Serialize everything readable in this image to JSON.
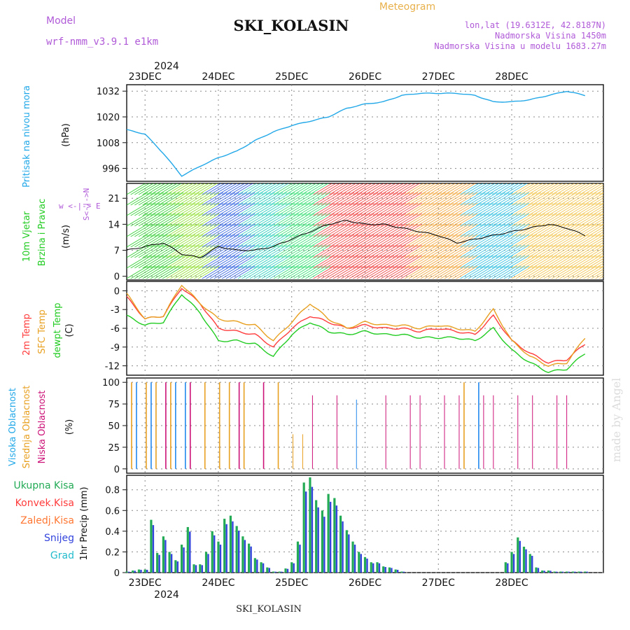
{
  "header": {
    "model_label": "Model",
    "model_name": "wrf-nmm_v3.9.1 e1km",
    "title": "SKI_KOLASIN",
    "subtitle": "Meteogram",
    "lonlat": "lon,lat (19.6312E, 42.8187N)",
    "elevation": "Nadmorska Visina 1450m",
    "model_elevation": "Nadmorska Visina u modelu 1683.27m",
    "watermark": "made by Angel",
    "footer": "SKI_KOLASIN"
  },
  "time_axis": {
    "year": "2024",
    "days": [
      "23DEC",
      "24DEC",
      "25DEC",
      "26DEC",
      "27DEC",
      "28DEC"
    ]
  },
  "colors": {
    "pressure": "#22a8e8",
    "temp2m": "#ff3b3b",
    "sfc": "#e8a020",
    "dew": "#22cc22",
    "high_cloud": "#2288ee",
    "mid_cloud": "#e8a020",
    "low_cloud": "#cc1177",
    "precip_total": "#22aa55",
    "snow": "#3344dd",
    "wind_speed": "#000000"
  },
  "panels": {
    "pressure": {
      "label": "Pritisak na nivou mora",
      "unit": "(hPa)",
      "ticks": [
        "996",
        "1008",
        "1020",
        "1032"
      ]
    },
    "wind": {
      "label1": "10m Vjetar",
      "label2": "Brzina i Pravac",
      "unit": "(m/s)",
      "ticks": [
        "0",
        "7",
        "14",
        "21"
      ],
      "compass": "w <-|-> E",
      "compass2": "S<-|->N"
    },
    "temp": {
      "label1": "2m Temp",
      "label2": "SFC Temp",
      "label3": "dewpt Temp",
      "unit": "(C)",
      "ticks": [
        "0",
        "-3",
        "-6",
        "-9",
        "-12"
      ]
    },
    "cloud": {
      "label1": "Visoka Oblacnost",
      "label2": "Srednja Oblacnost",
      "label3": "Niska Oblacnost",
      "unit": "(%)",
      "ticks": [
        "0",
        "25",
        "50",
        "75",
        "100"
      ]
    },
    "precip": {
      "legend": [
        "Ukupna Kisa",
        "Konvek.Kisa",
        "Zaledj.Kisa",
        "Snijeg",
        "Grad"
      ],
      "legend_colors": [
        "#22aa55",
        "#ff3b3b",
        "#ff7733",
        "#3344dd",
        "#22bbcc"
      ],
      "unit": "1hr Precip (mm)",
      "ticks": [
        "0",
        "0.2",
        "0.4",
        "0.6",
        "0.8"
      ]
    }
  },
  "chart_data": [
    {
      "type": "line",
      "title": "Pritisak na nivou mora",
      "ylabel": "(hPa)",
      "x_hours_from_23DEC_00": [
        -6,
        0,
        6,
        12,
        18,
        24,
        30,
        36,
        42,
        48,
        54,
        60,
        66,
        72,
        78,
        84,
        90,
        96,
        102,
        108,
        114,
        120,
        126,
        132,
        138,
        144
      ],
      "series": [
        {
          "name": "Pritisak",
          "values": [
            1014,
            1012,
            1003,
            992.5,
            997,
            1001,
            1004,
            1009,
            1013,
            1016,
            1018,
            1020,
            1024,
            1026,
            1027,
            1030,
            1031,
            1031,
            1031,
            1030,
            1027,
            1027,
            1028,
            1030,
            1032,
            1030
          ]
        }
      ],
      "ylim": [
        990,
        1035
      ]
    },
    {
      "type": "line",
      "title": "10m Vjetar Brzina i Pravac",
      "ylabel": "(m/s)",
      "x_hours_from_23DEC_00": [
        -6,
        0,
        6,
        12,
        18,
        24,
        30,
        36,
        42,
        48,
        54,
        60,
        66,
        72,
        78,
        84,
        90,
        96,
        102,
        108,
        114,
        120,
        126,
        132,
        138,
        144
      ],
      "series": [
        {
          "name": "Brzina",
          "values": [
            7,
            8,
            9,
            6,
            5,
            8,
            7,
            7,
            8,
            10,
            12,
            14,
            15,
            14,
            14,
            13,
            12,
            11,
            9,
            10,
            11,
            12,
            13,
            14,
            13,
            11
          ]
        }
      ],
      "ylim": [
        -1,
        25
      ]
    },
    {
      "type": "line",
      "title": "Temperatura",
      "ylabel": "(C)",
      "x_hours_from_23DEC_00": [
        -6,
        0,
        6,
        12,
        18,
        24,
        30,
        36,
        42,
        48,
        54,
        60,
        66,
        72,
        78,
        84,
        90,
        96,
        102,
        108,
        114,
        120,
        126,
        132,
        138,
        144
      ],
      "series": [
        {
          "name": "2m Temp",
          "values": [
            -1,
            -4.5,
            -4,
            0.5,
            -2,
            -6,
            -6.5,
            -7,
            -9,
            -6,
            -4,
            -5,
            -6,
            -5.5,
            -6,
            -6,
            -6.5,
            -6,
            -6.5,
            -7,
            -4,
            -8,
            -10,
            -11.5,
            -11,
            -8.5
          ]
        },
        {
          "name": "SFC Temp",
          "values": [
            -0.5,
            -4.5,
            -4,
            1,
            -2,
            -4.5,
            -5,
            -5.5,
            -8,
            -5,
            -2,
            -4.5,
            -6,
            -5,
            -5.5,
            -5.5,
            -6,
            -5.5,
            -6,
            -6.5,
            -3,
            -8,
            -10.5,
            -12,
            -11.5,
            -7.5
          ]
        },
        {
          "name": "dewpt Temp",
          "values": [
            -4,
            -5.5,
            -5,
            -0.5,
            -3.5,
            -8,
            -8,
            -8.5,
            -10.5,
            -7,
            -5,
            -6.5,
            -7,
            -6.5,
            -7,
            -7,
            -7.5,
            -7.5,
            -7.5,
            -8,
            -6,
            -9.5,
            -11.5,
            -13,
            -12.5,
            -10
          ]
        }
      ],
      "ylim": [
        -13.5,
        1.5
      ]
    },
    {
      "type": "bar",
      "title": "Oblacnost",
      "ylabel": "(%)",
      "series": [
        {
          "name": "Visoka Oblacnost",
          "values": [
            100,
            100,
            100,
            100,
            0,
            0,
            0,
            0,
            0,
            0,
            0,
            0,
            80,
            0,
            0,
            0,
            0,
            0,
            100,
            100,
            0,
            0,
            0,
            0,
            0,
            0
          ]
        },
        {
          "name": "Srednja Oblacnost",
          "values": [
            100,
            100,
            100,
            100,
            100,
            100,
            100,
            100,
            100,
            40,
            0,
            0,
            0,
            0,
            0,
            0,
            0,
            0,
            100,
            100,
            0,
            0,
            0,
            0,
            0,
            70
          ]
        },
        {
          "name": "Niska Oblacnost",
          "values": [
            100,
            100,
            100,
            100,
            100,
            100,
            100,
            100,
            85,
            85,
            85,
            85,
            85,
            85,
            85,
            85,
            85,
            85,
            85,
            85,
            85,
            85,
            85,
            85,
            85,
            85
          ]
        }
      ],
      "ylim": [
        0,
        100
      ]
    },
    {
      "type": "bar",
      "title": "1hr Precip (mm)",
      "ylabel": "1hr Precip (mm)",
      "x_hours_from_23DEC_00": [
        -6,
        -4,
        -2,
        0,
        2,
        4,
        6,
        8,
        10,
        12,
        14,
        16,
        18,
        20,
        22,
        24,
        26,
        28,
        30,
        32,
        34,
        36,
        38,
        40,
        42,
        44,
        46,
        48,
        50,
        52,
        54,
        56,
        58,
        60,
        62,
        64,
        66,
        68,
        70,
        72,
        74,
        76,
        78,
        80,
        82,
        84,
        86,
        88,
        90,
        92,
        94,
        96,
        98,
        100,
        102,
        104,
        106,
        108,
        110,
        112,
        114,
        116,
        118,
        120,
        122,
        124,
        126,
        128,
        130,
        132,
        134,
        136,
        138,
        140,
        142,
        144
      ],
      "series": [
        {
          "name": "Ukupna Kisa",
          "values": [
            0.01,
            0.02,
            0.03,
            0.03,
            0.51,
            0.19,
            0.35,
            0.2,
            0.12,
            0.27,
            0.44,
            0.08,
            0.08,
            0.2,
            0.4,
            0.3,
            0.52,
            0.55,
            0.45,
            0.35,
            0.28,
            0.14,
            0.1,
            0.05,
            0.01,
            0.01,
            0.04,
            0.1,
            0.3,
            0.87,
            0.92,
            0.7,
            0.6,
            0.76,
            0.72,
            0.55,
            0.41,
            0.3,
            0.2,
            0.15,
            0.1,
            0.1,
            0.06,
            0.05,
            0.03,
            0.01,
            0,
            0,
            0,
            0,
            0,
            0,
            0,
            0,
            0,
            0,
            0,
            0,
            0,
            0,
            0,
            0,
            0.1,
            0.2,
            0.34,
            0.25,
            0.18,
            0.05,
            0.02,
            0.02,
            0.01,
            0.01,
            0.01,
            0.01,
            0.01,
            0.01
          ]
        }
      ],
      "ylim": [
        0,
        0.9
      ]
    }
  ]
}
